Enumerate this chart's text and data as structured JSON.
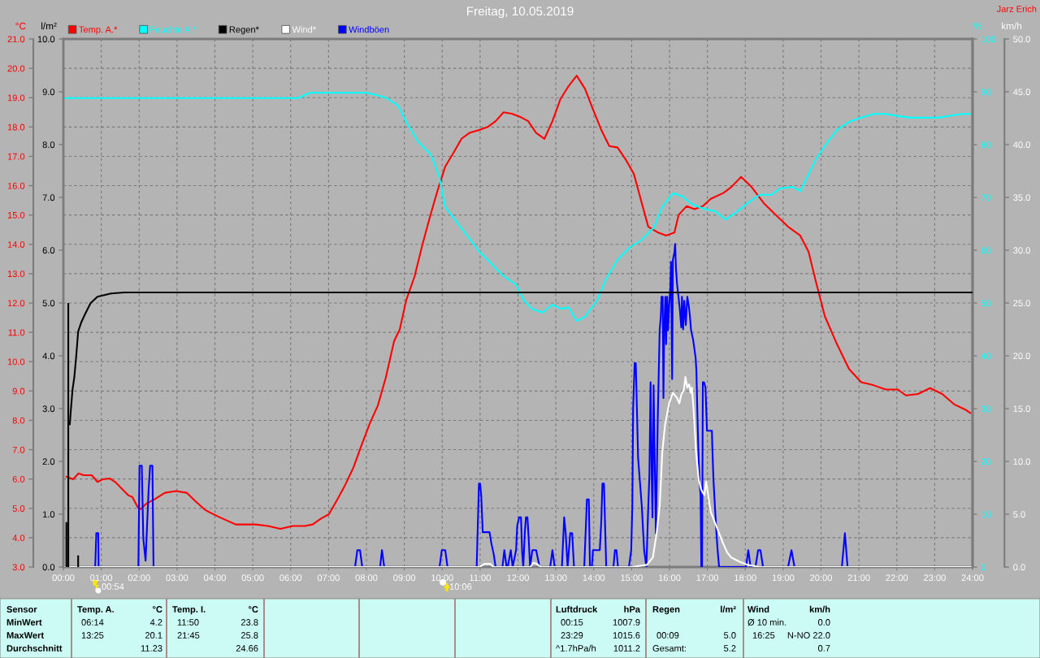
{
  "chart_data": [
    {
      "type": "line",
      "title": "Freitag, 10.05.2019",
      "ylabel": "°C",
      "y2label": "%",
      "y3label": "l/m²",
      "xlim": [
        0,
        24
      ],
      "xticks": [
        {
          "value": 0,
          "label": "00:00"
        },
        {
          "value": 1,
          "label": "01:00"
        },
        {
          "value": 2,
          "label": "02:00"
        },
        {
          "value": 3,
          "label": "03:00"
        },
        {
          "value": 4,
          "label": "04:00"
        },
        {
          "value": 5,
          "label": "05:00"
        },
        {
          "value": 6,
          "label": "06:00"
        },
        {
          "value": 7,
          "label": "07:00"
        },
        {
          "value": 8,
          "label": "08:00"
        },
        {
          "value": 9,
          "label": "09:00"
        },
        {
          "value": 10,
          "label": "10:00"
        },
        {
          "value": 11,
          "label": "11:00"
        },
        {
          "value": 12,
          "label": "12:00"
        },
        {
          "value": 13,
          "label": "13:00"
        },
        {
          "value": 14,
          "label": "14:00"
        },
        {
          "value": 15,
          "label": "15:00"
        },
        {
          "value": 16,
          "label": "16:00"
        },
        {
          "value": 17,
          "label": "17:00"
        },
        {
          "value": 18,
          "label": "18:00"
        },
        {
          "value": 19,
          "label": "19:00"
        },
        {
          "value": 20,
          "label": "20:00"
        },
        {
          "value": 21,
          "label": "21:00"
        },
        {
          "value": 22,
          "label": "22:00"
        },
        {
          "value": 23,
          "label": "23:00"
        },
        {
          "value": 24,
          "label": "24:00"
        }
      ],
      "ylim": [
        3,
        21
      ],
      "yticks": [
        {
          "value": 3,
          "label": "3.0"
        },
        {
          "value": 4,
          "label": "4.0"
        },
        {
          "value": 5,
          "label": "5.0"
        },
        {
          "value": 6,
          "label": "6.0"
        },
        {
          "value": 7,
          "label": "7.0"
        },
        {
          "value": 8,
          "label": "8.0"
        },
        {
          "value": 9,
          "label": "9.0"
        },
        {
          "value": 10,
          "label": "10.0"
        },
        {
          "value": 11,
          "label": "11.0"
        },
        {
          "value": 12,
          "label": "12.0"
        },
        {
          "value": 13,
          "label": "13.0"
        },
        {
          "value": 14,
          "label": "14.0"
        },
        {
          "value": 15,
          "label": "15.0"
        },
        {
          "value": 16,
          "label": "16.0"
        },
        {
          "value": 17,
          "label": "17.0"
        },
        {
          "value": 18,
          "label": "18.0"
        },
        {
          "value": 19,
          "label": "19.0"
        },
        {
          "value": 20,
          "label": "20.0"
        },
        {
          "value": 21,
          "label": "21.0"
        }
      ],
      "y2lim": [
        0,
        100
      ],
      "y2ticks": [
        0,
        10,
        20,
        30,
        40,
        50,
        60,
        70,
        80,
        90,
        100
      ],
      "y3lim": [
        0,
        10
      ],
      "y3ticks": [
        {
          "value": 0,
          "label": "0.0"
        },
        {
          "value": 1,
          "label": "1.0"
        },
        {
          "value": 2,
          "label": "2.0"
        },
        {
          "value": 3,
          "label": "3.0"
        },
        {
          "value": 4,
          "label": "4.0"
        },
        {
          "value": 5,
          "label": "5.0"
        },
        {
          "value": 6,
          "label": "6.0"
        },
        {
          "value": 7,
          "label": "7.0"
        },
        {
          "value": 8,
          "label": "8.0"
        },
        {
          "value": 9,
          "label": "9.0"
        },
        {
          "value": 10,
          "label": "10.0"
        }
      ],
      "grid": true,
      "legend": "top left",
      "series": [
        {
          "name": "Temp. A.*",
          "color": "#ff0000",
          "x": [
            0.08,
            0.26,
            0.4,
            0.54,
            0.75,
            0.9,
            1.04,
            1.22,
            1.37,
            1.54,
            1.72,
            1.82,
            1.97,
            2.04,
            2.19,
            2.4,
            2.68,
            2.97,
            3.26,
            3.48,
            3.75,
            3.9,
            4.12,
            4.55,
            4.87,
            5.08,
            5.4,
            5.73,
            6.05,
            6.37,
            6.58,
            6.8,
            7.01,
            7.23,
            7.44,
            7.66,
            7.87,
            8.09,
            8.3,
            8.51,
            8.73,
            8.88,
            9.05,
            9.27,
            9.48,
            9.69,
            9.87,
            10.08,
            10.29,
            10.51,
            10.72,
            10.98,
            11.2,
            11.41,
            11.62,
            11.84,
            12.05,
            12.27,
            12.48,
            12.7,
            12.91,
            13.12,
            13.34,
            13.55,
            13.77,
            13.98,
            14.2,
            14.41,
            14.63,
            14.84,
            15.06,
            15.27,
            15.44,
            15.7,
            15.91,
            16.13,
            16.24,
            16.45,
            16.66,
            16.88,
            17.09,
            17.42,
            17.63,
            17.89,
            18.17,
            18.49,
            18.81,
            19.13,
            19.45,
            19.67,
            19.88,
            20.1,
            20.42,
            20.74,
            21.06,
            21.38,
            21.71,
            22.03,
            22.24,
            22.56,
            22.88,
            23.2,
            23.51,
            23.83,
            23.94
          ],
          "values": [
            6.08,
            5.99,
            6.19,
            6.13,
            6.13,
            5.9,
            5.99,
            6.02,
            5.9,
            5.67,
            5.44,
            5.39,
            5.02,
            4.97,
            5.16,
            5.3,
            5.53,
            5.59,
            5.53,
            5.25,
            4.94,
            4.84,
            4.7,
            4.45,
            4.45,
            4.45,
            4.4,
            4.3,
            4.4,
            4.4,
            4.45,
            4.65,
            4.8,
            5.3,
            5.8,
            6.4,
            7.15,
            7.9,
            8.5,
            9.45,
            10.7,
            11.1,
            12.1,
            12.9,
            14.0,
            15.0,
            15.8,
            16.65,
            17.1,
            17.6,
            17.8,
            17.9,
            18.0,
            18.2,
            18.5,
            18.45,
            18.35,
            18.2,
            17.8,
            17.6,
            18.2,
            18.95,
            19.4,
            19.75,
            19.3,
            18.6,
            17.9,
            17.35,
            17.3,
            16.9,
            16.4,
            15.4,
            14.6,
            14.4,
            14.3,
            14.4,
            15.0,
            15.3,
            15.2,
            15.3,
            15.55,
            15.75,
            15.95,
            16.3,
            15.95,
            15.4,
            15.0,
            14.6,
            14.3,
            13.75,
            12.65,
            11.55,
            10.6,
            9.75,
            9.3,
            9.2,
            9.05,
            9.05,
            8.85,
            8.9,
            9.1,
            8.9,
            8.55,
            8.35,
            8.25
          ]
        },
        {
          "name": "Feuchte A.*",
          "color": "#00ffff",
          "axis": "y2",
          "x": [
            0.04,
            6.2,
            6.5,
            8.0,
            8.2,
            8.51,
            8.83,
            9.05,
            9.37,
            9.69,
            9.91,
            10.08,
            10.33,
            10.66,
            10.98,
            11.2,
            11.41,
            11.62,
            11.95,
            12.16,
            12.37,
            12.65,
            12.91,
            13.12,
            13.34,
            13.55,
            13.77,
            14.09,
            14.31,
            14.63,
            14.95,
            15.27,
            15.59,
            15.81,
            16.09,
            16.34,
            16.56,
            16.77,
            16.99,
            17.2,
            17.48,
            17.74,
            18.06,
            18.38,
            18.7,
            18.92,
            19.24,
            19.45,
            19.67,
            19.88,
            20.1,
            20.42,
            20.74,
            21.06,
            21.38,
            21.71,
            22.03,
            22.35,
            22.78,
            23.1,
            23.42,
            23.74,
            23.94
          ],
          "values": [
            88.8,
            88.8,
            89.8,
            89.8,
            89.5,
            88.9,
            87.4,
            84.3,
            80.5,
            78.2,
            74.3,
            68.2,
            65.8,
            62.8,
            59.7,
            58.2,
            56.6,
            55.1,
            53.5,
            50.5,
            48.9,
            48.2,
            49.7,
            48.9,
            49.2,
            46.6,
            47.4,
            50.5,
            54.3,
            58.2,
            60.5,
            62.0,
            64.3,
            68.2,
            70.8,
            70.2,
            68.9,
            68.2,
            67.7,
            67.4,
            65.8,
            67.1,
            68.9,
            70.5,
            70.5,
            71.7,
            72.0,
            71.2,
            74.3,
            77.4,
            79.7,
            82.8,
            84.3,
            85.1,
            85.8,
            85.8,
            85.4,
            85.1,
            85.1,
            85.1,
            85.5,
            85.8,
            85.8
          ]
        },
        {
          "name": "Regen*",
          "color": "#000000",
          "axis": "y3",
          "x": [
            0.17,
            0.19,
            0.24,
            0.29,
            0.34,
            0.39,
            0.47,
            0.58,
            0.72,
            0.9,
            1.26,
            1.61,
            24.0
          ],
          "values": [
            2.7,
            2.9,
            3.35,
            3.6,
            4.0,
            4.46,
            4.63,
            4.8,
            5.0,
            5.12,
            5.18,
            5.2,
            5.2
          ]
        },
        {
          "color": "#000000",
          "type": "bar",
          "axis": "y3",
          "x": [
            0.08,
            0.13,
            0.39
          ],
          "values": [
            0.85,
            5.0,
            0.22
          ]
        }
      ],
      "annotations": [
        "Jarz Erich",
        "00:54",
        "10:06",
        "Sensor",
        "Temp. A.",
        "°C",
        "Temp. I.",
        "°C",
        "Luftdruck",
        "hPa",
        "Regen",
        "l/m²",
        "Wind",
        "km/h",
        "MinWert",
        "06:14",
        "4.2",
        "11:50",
        "23.8",
        "00:15",
        "1007.9",
        "Ø 10 min.",
        "0.0",
        "MaxWert",
        "13:25",
        "20.1",
        "21:45",
        "25.8",
        "23:29",
        "1015.6",
        "00:09",
        "5.0",
        "16:25",
        "N-NO 22.0",
        "Durchschnitt",
        "11.23",
        "24.66",
        "^1.7hPa/h",
        "1011.2",
        "Gesamt:",
        "5.2",
        "0.7"
      ]
    },
    {
      "type": "line",
      "ylabel": "km/h",
      "xlim": [
        0,
        24
      ],
      "ylim": [
        0,
        50
      ],
      "yticks": [
        {
          "value": 0,
          "label": "0.0"
        },
        {
          "value": 5,
          "label": "5.0"
        },
        {
          "value": 10,
          "label": "10.0"
        },
        {
          "value": 15,
          "label": "15.0"
        },
        {
          "value": 20,
          "label": "20.0"
        },
        {
          "value": 25,
          "label": "25.0"
        },
        {
          "value": 30,
          "label": "30.0"
        },
        {
          "value": 35,
          "label": "35.0"
        },
        {
          "value": 40,
          "label": "40.0"
        },
        {
          "value": 45,
          "label": "45.0"
        },
        {
          "value": 50,
          "label": "50.0"
        }
      ],
      "tick_labels": "y",
      "legend": "top left",
      "series": [
        {
          "name": "Wind*",
          "color": "#ffffff",
          "x": [
            0,
            10.98,
            11.12,
            11.27,
            11.35,
            12.33,
            12.4,
            12.5,
            12.6,
            15.0,
            15.4,
            15.56,
            15.66,
            15.74,
            15.81,
            15.88,
            15.99,
            16.09,
            16.2,
            16.26,
            16.31,
            16.38,
            16.42,
            16.47,
            16.52,
            16.56,
            16.59,
            16.64,
            16.7,
            16.77,
            16.84,
            16.92,
            16.97,
            17.02,
            17.09,
            17.2,
            17.31,
            17.42,
            17.52,
            17.63,
            17.85,
            18.06,
            18.38,
            24.0
          ],
          "values": [
            0,
            0,
            0.3,
            0.3,
            0,
            0,
            0.4,
            0.3,
            0,
            0,
            0.2,
            0.9,
            3.2,
            5.7,
            10.9,
            13.4,
            15.5,
            16.5,
            16.0,
            15.5,
            16.3,
            16.8,
            18.0,
            17.0,
            17.3,
            16.5,
            17.0,
            14.7,
            10.9,
            8.3,
            7.3,
            6.8,
            8.1,
            6.8,
            5.2,
            4.2,
            3.2,
            2.2,
            1.4,
            0.9,
            0.5,
            0.2,
            0,
            0
          ]
        },
        {
          "name": "Windböen",
          "color": "#0000ff",
          "x": [
            0,
            0.84,
            0.87,
            0.92,
            0.93,
            1.98,
            2.01,
            2.07,
            2.11,
            2.17,
            2.25,
            2.29,
            2.35,
            2.38,
            7.7,
            7.76,
            7.83,
            7.89,
            8.36,
            8.41,
            8.47,
            9.93,
            9.99,
            10.08,
            10.14,
            10.91,
            10.97,
            11.0,
            11.03,
            11.07,
            11.25,
            11.3,
            11.36,
            11.41,
            11.59,
            11.64,
            11.7,
            11.73,
            11.81,
            11.86,
            11.95,
            11.98,
            12.03,
            12.08,
            12.11,
            12.14,
            12.18,
            12.21,
            12.25,
            12.28,
            12.32,
            12.38,
            12.48,
            12.57,
            12.85,
            12.91,
            12.97,
            13.16,
            13.22,
            13.26,
            13.31,
            13.38,
            13.43,
            13.48,
            13.75,
            13.82,
            13.87,
            13.9,
            13.95,
            13.98,
            14.16,
            14.2,
            14.23,
            14.27,
            14.3,
            14.33,
            14.52,
            14.56,
            14.6,
            14.64,
            14.93,
            14.99,
            15.02,
            15.04,
            15.08,
            15.11,
            15.14,
            15.17,
            15.27,
            15.33,
            15.39,
            15.43,
            15.47,
            15.5,
            15.53,
            15.55,
            15.58,
            15.61,
            15.64,
            15.69,
            15.74,
            15.77,
            15.79,
            15.82,
            15.84,
            15.86,
            15.89,
            15.91,
            15.94,
            15.96,
            15.99,
            16.02,
            16.04,
            16.07,
            16.09,
            16.13,
            16.15,
            16.17,
            16.2,
            16.24,
            16.27,
            16.31,
            16.33,
            16.36,
            16.39,
            16.43,
            16.47,
            16.51,
            16.54,
            16.57,
            16.62,
            16.64,
            16.69,
            16.71,
            16.74,
            16.76,
            16.79,
            16.82,
            16.84,
            16.86,
            16.88,
            16.91,
            16.95,
            16.99,
            17.12,
            17.13,
            17.16,
            17.2,
            17.24,
            17.27,
            17.31,
            18.02,
            18.08,
            18.14,
            18.27,
            18.34,
            18.4,
            18.47,
            19.13,
            19.22,
            19.3,
            20.55,
            20.63,
            20.7,
            24.0
          ],
          "values": [
            0,
            0,
            3.2,
            3.2,
            0,
            0,
            9.6,
            9.6,
            2.7,
            0.6,
            7.3,
            9.6,
            9.6,
            0,
            0,
            1.6,
            1.6,
            0,
            0,
            1.6,
            0,
            0,
            1.6,
            1.6,
            0,
            0,
            7.9,
            7.9,
            6.8,
            3.3,
            3.3,
            2.2,
            1.2,
            0,
            0,
            1.6,
            0,
            0,
            1.6,
            0,
            1.6,
            3.9,
            4.7,
            4.7,
            1.4,
            0,
            3.2,
            4.7,
            4.7,
            2.9,
            0,
            1.6,
            1.6,
            0,
            0,
            1.6,
            0,
            0,
            4.7,
            3.2,
            0,
            3.2,
            3.2,
            0,
            0,
            6.4,
            6.4,
            0,
            0,
            1.6,
            1.6,
            4.4,
            7.9,
            7.9,
            3.9,
            0,
            0,
            1.6,
            1.6,
            0,
            0,
            1.6,
            6.0,
            15.0,
            19.3,
            19.3,
            15.0,
            10.4,
            5.7,
            1.6,
            0,
            4.7,
            8.8,
            17.5,
            8.8,
            4.7,
            17.2,
            10.1,
            3.2,
            14.0,
            22.4,
            23.7,
            25.6,
            25.6,
            16.0,
            22.4,
            25.6,
            21.1,
            25.6,
            22.4,
            24.7,
            26.3,
            28.9,
            17.8,
            29.1,
            29.8,
            30.6,
            28.3,
            26.8,
            25.5,
            24.5,
            22.7,
            25.6,
            22.5,
            25.2,
            22.9,
            25.6,
            24.7,
            23.7,
            22.4,
            21.6,
            21.1,
            19.8,
            18.6,
            14.0,
            11.4,
            8.3,
            6.8,
            0,
            0,
            17.5,
            17.5,
            17.0,
            12.9,
            12.9,
            11.4,
            8.3,
            5.7,
            3.2,
            1.6,
            0,
            0,
            1.6,
            0,
            0,
            1.6,
            1.6,
            0,
            0,
            1.6,
            0,
            0,
            3.2,
            0,
            0
          ]
        }
      ]
    }
  ]
}
